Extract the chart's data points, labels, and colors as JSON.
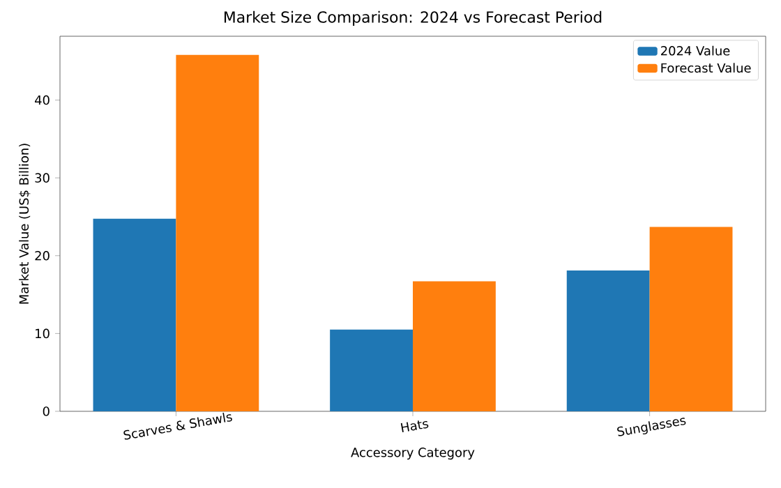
{
  "chart_data": {
    "type": "bar",
    "title": "Market Size Comparison: 2024 vs Forecast Period",
    "xlabel": "Accessory Category",
    "ylabel": "Market Value (US$ Billion)",
    "categories": [
      "Scarves & Shawls",
      "Hats",
      "Sunglasses"
    ],
    "series": [
      {
        "name": "2024 Value",
        "color": "#1f77b4",
        "values": [
          24.75,
          10.5,
          18.1
        ]
      },
      {
        "name": "Forecast Value",
        "color": "#ff7f0e",
        "values": [
          45.8,
          16.7,
          23.7
        ]
      }
    ],
    "ylim": [
      0,
      48.2
    ],
    "yticks": [
      0,
      10,
      20,
      30,
      40
    ],
    "legend": "top right"
  }
}
